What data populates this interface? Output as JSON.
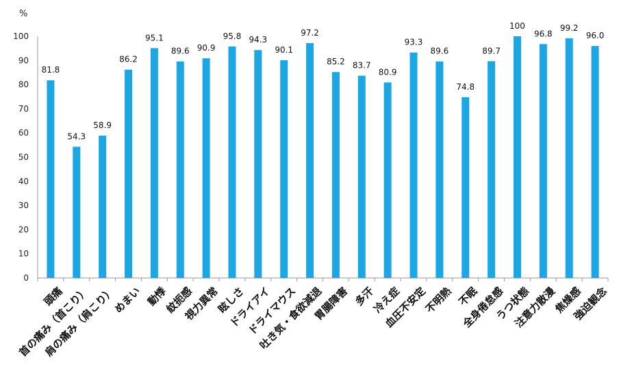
{
  "chart_data": {
    "type": "bar",
    "title": "",
    "xlabel": "",
    "ylabel": "%",
    "ylim": [
      0,
      100
    ],
    "yticks": [
      0,
      10,
      20,
      30,
      40,
      50,
      60,
      70,
      80,
      90,
      100
    ],
    "grid": false,
    "categories": [
      "頭痛",
      "首の痛み（首こり）",
      "肩の痛み（肩こり）",
      "めまい",
      "動悸",
      "紋扼感",
      "視力異常",
      "眩しさ",
      "ドライアイ",
      "ドライマウス",
      "吐き気・食欲減退",
      "胃腸障害",
      "多汗",
      "冷え症",
      "血圧不安定",
      "不明熱",
      "不眠",
      "全身倦怠感",
      "うつ状態",
      "注意力散漫",
      "焦燥感",
      "強迫観念"
    ],
    "values": [
      81.8,
      54.3,
      58.9,
      86.2,
      95.1,
      89.6,
      90.9,
      95.8,
      94.3,
      90.1,
      97.2,
      85.2,
      83.7,
      80.9,
      93.3,
      89.6,
      74.8,
      89.7,
      100,
      96.8,
      99.2,
      96.0
    ],
    "value_labels": [
      "81.8",
      "54.3",
      "58.9",
      "86.2",
      "95.1",
      "89.6",
      "90.9",
      "95.8",
      "94.3",
      "90.1",
      "97.2",
      "85.2",
      "83.7",
      "80.9",
      "93.3",
      "89.6",
      "74.8",
      "89.7",
      "100",
      "96.8",
      "99.2",
      "96.0"
    ],
    "bar_color": "#1CA6E4"
  }
}
